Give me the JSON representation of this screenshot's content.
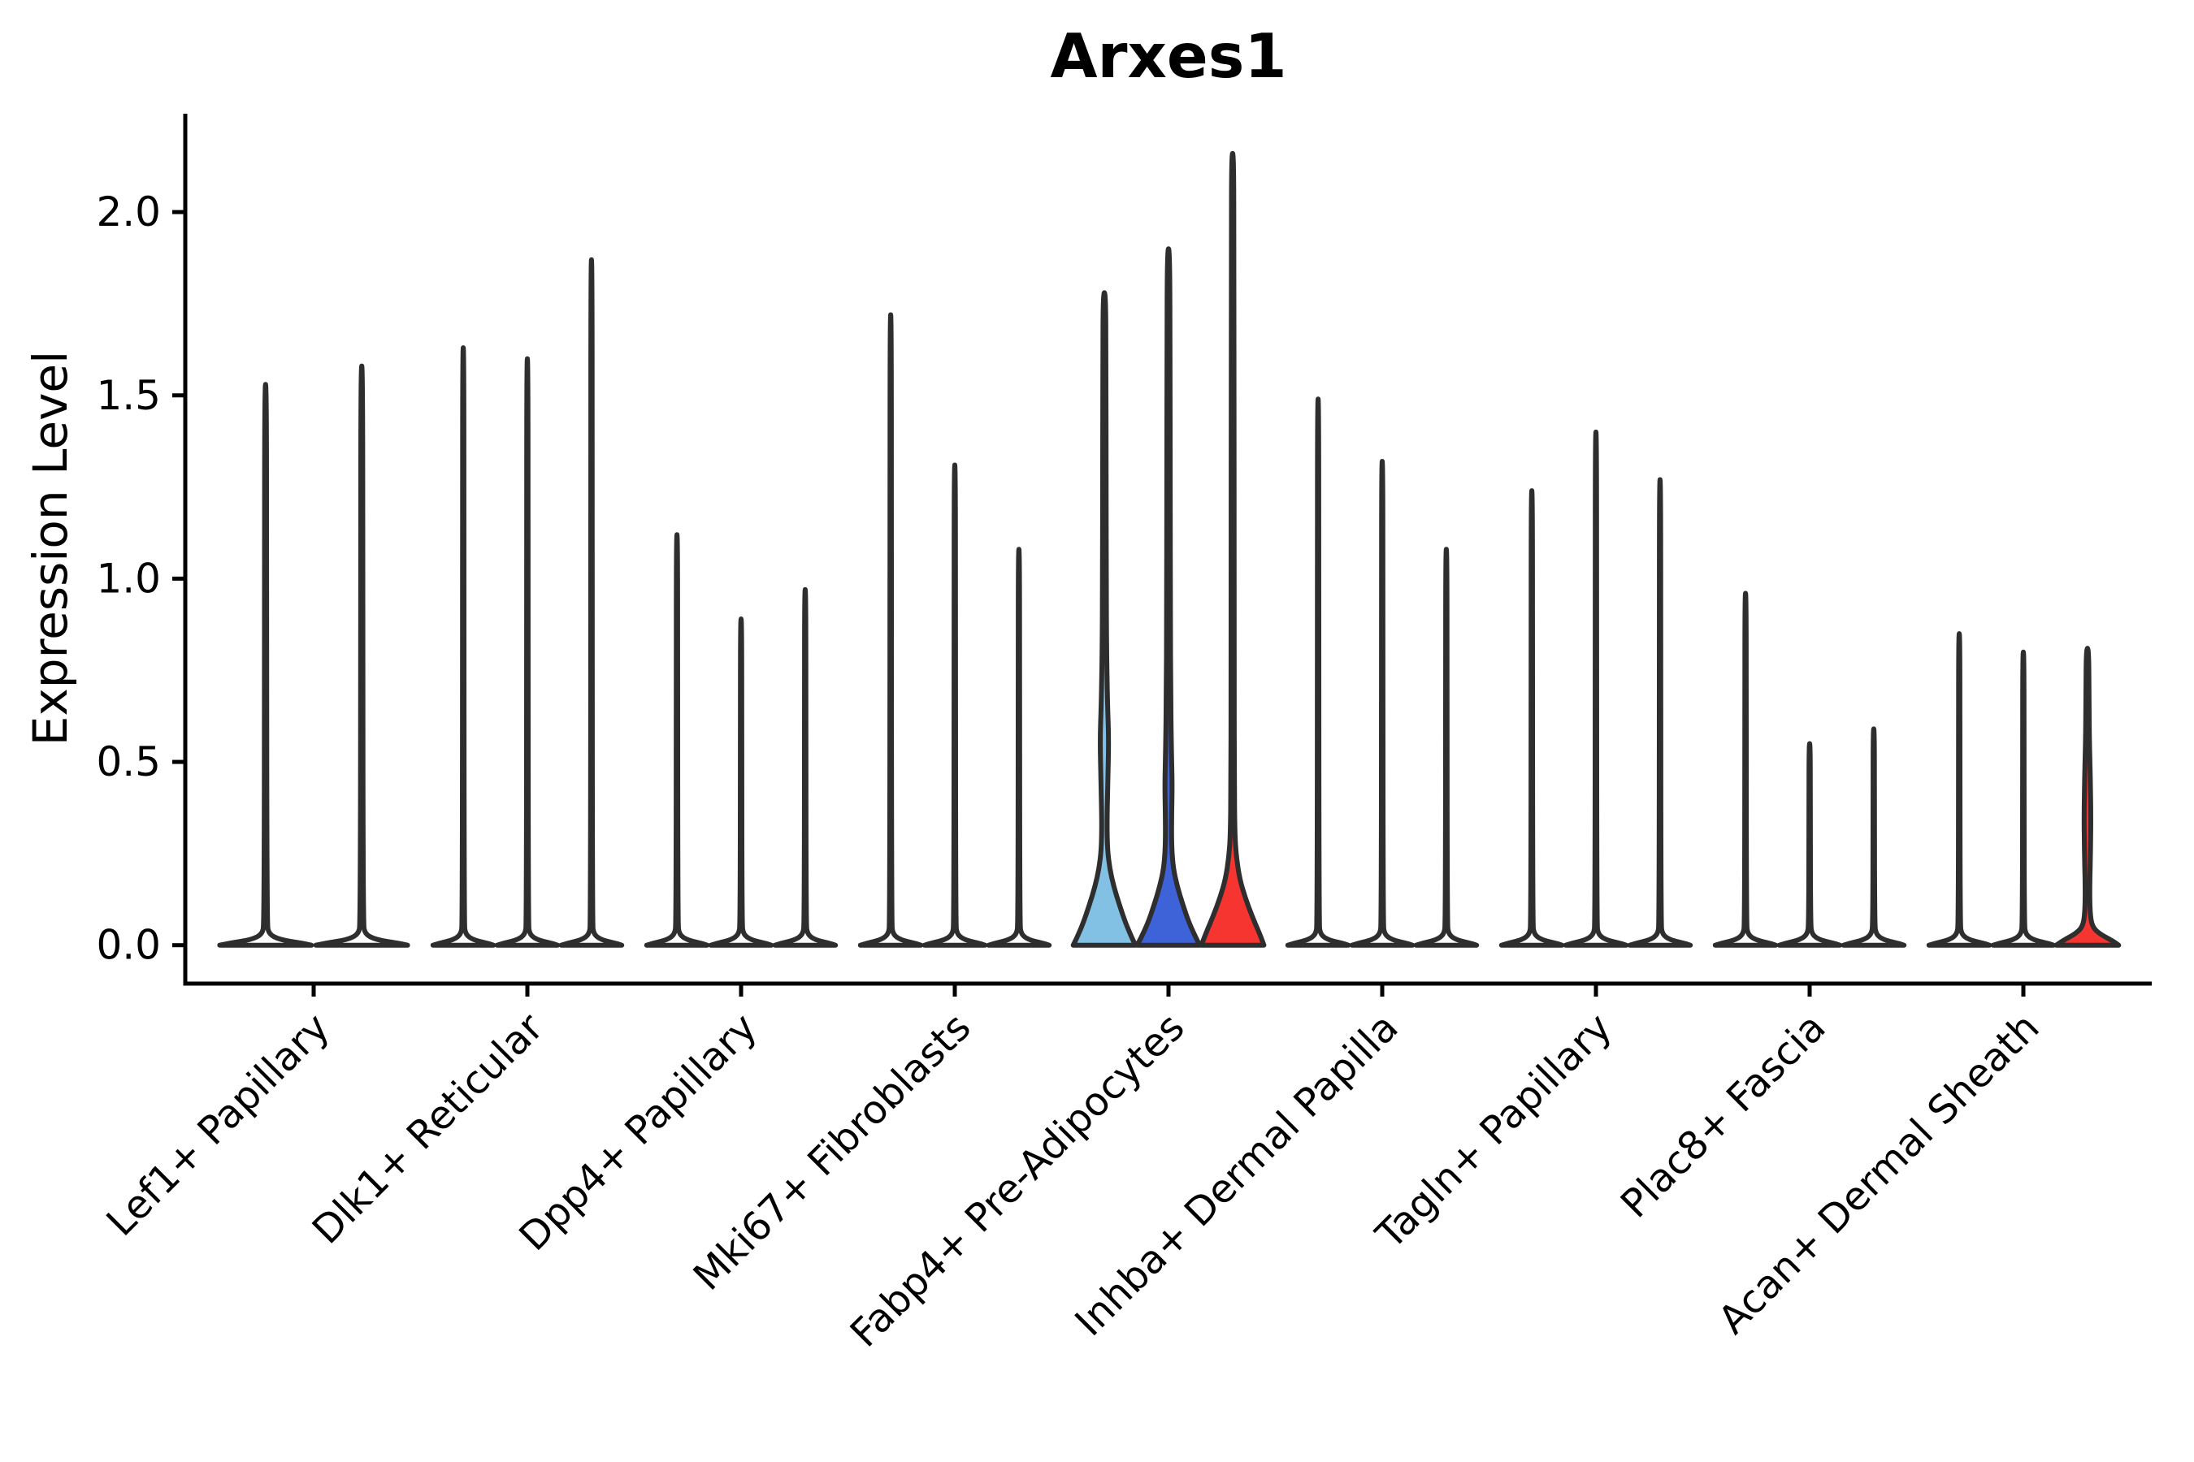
{
  "chart_data": {
    "type": "violin",
    "title": "Arxes1",
    "xlabel": "",
    "ylabel": "Expression Level",
    "yticks": [
      0.0,
      0.5,
      1.0,
      1.5,
      2.0
    ],
    "ylim": [
      -0.103,
      2.268
    ],
    "grid": false,
    "legend": "none",
    "colors": {
      "light_blue": "#82C0E4",
      "royal_blue": "#3E63D8",
      "red": "#F63430",
      "outline": "#2E2E2E",
      "axis": "#000000",
      "plain_fill": "#FFFFFF"
    },
    "default_profile": [
      [
        0,
        0.97
      ],
      [
        0.006,
        0.75
      ],
      [
        0.015,
        0.3
      ],
      [
        0.03,
        0.07
      ],
      [
        0.06,
        0.03
      ]
    ],
    "groups": [
      {
        "label": "Lef1+ Papillary",
        "violins": [
          {
            "max": 1.53,
            "fill": null
          },
          {
            "max": 1.58,
            "fill": null
          }
        ]
      },
      {
        "label": "Dlk1+ Reticular",
        "violins": [
          {
            "max": 1.63,
            "fill": null
          },
          {
            "max": 1.6,
            "fill": null
          },
          {
            "max": 1.87,
            "fill": null
          }
        ]
      },
      {
        "label": "Dpp4+ Papillary",
        "violins": [
          {
            "max": 1.12,
            "fill": null
          },
          {
            "max": 0.89,
            "fill": null
          },
          {
            "max": 0.97,
            "fill": null
          }
        ]
      },
      {
        "label": "Mki67+ Fibroblasts",
        "violins": [
          {
            "max": 1.72,
            "fill": null
          },
          {
            "max": 1.31,
            "fill": null
          },
          {
            "max": 1.08,
            "fill": null
          }
        ]
      },
      {
        "label": "Fabp4+ Pre-Adipocytes",
        "violins": [
          {
            "max": 1.78,
            "fill": "light_blue",
            "profile": [
              [
                0,
                1
              ],
              [
                0.02,
                0.88
              ],
              [
                0.06,
                0.68
              ],
              [
                0.11,
                0.48
              ],
              [
                0.16,
                0.3
              ],
              [
                0.21,
                0.17
              ],
              [
                0.26,
                0.1
              ],
              [
                0.33,
                0.08
              ],
              [
                0.45,
                0.11
              ],
              [
                0.56,
                0.14
              ],
              [
                0.66,
                0.1
              ],
              [
                0.8,
                0.07
              ],
              [
                1.0,
                0.06
              ],
              [
                1.3,
                0.055
              ],
              [
                1.6,
                0.05
              ],
              [
                1.78,
                0.04
              ]
            ]
          },
          {
            "max": 1.9,
            "fill": "royal_blue",
            "profile": [
              [
                0,
                1
              ],
              [
                0.02,
                0.88
              ],
              [
                0.06,
                0.66
              ],
              [
                0.11,
                0.46
              ],
              [
                0.16,
                0.28
              ],
              [
                0.21,
                0.15
              ],
              [
                0.27,
                0.1
              ],
              [
                0.35,
                0.1
              ],
              [
                0.44,
                0.12
              ],
              [
                0.54,
                0.09
              ],
              [
                0.68,
                0.07
              ],
              [
                0.9,
                0.06
              ],
              [
                1.25,
                0.055
              ],
              [
                1.6,
                0.05
              ],
              [
                1.9,
                0.04
              ]
            ]
          },
          {
            "max": 2.16,
            "fill": "red",
            "profile": [
              [
                0,
                1
              ],
              [
                0.03,
                0.87
              ],
              [
                0.08,
                0.62
              ],
              [
                0.13,
                0.4
              ],
              [
                0.18,
                0.23
              ],
              [
                0.24,
                0.12
              ],
              [
                0.3,
                0.07
              ],
              [
                0.45,
                0.055
              ],
              [
                0.7,
                0.05
              ],
              [
                1.1,
                0.05
              ],
              [
                1.5,
                0.045
              ],
              [
                1.9,
                0.04
              ],
              [
                2.16,
                0.035
              ]
            ]
          }
        ]
      },
      {
        "label": "Inhba+ Dermal Papilla",
        "violins": [
          {
            "max": 1.49,
            "fill": null
          },
          {
            "max": 1.32,
            "fill": null
          },
          {
            "max": 1.08,
            "fill": null
          }
        ]
      },
      {
        "label": "Tagln+ Papillary",
        "violins": [
          {
            "max": 1.24,
            "fill": null
          },
          {
            "max": 1.4,
            "fill": null
          },
          {
            "max": 1.27,
            "fill": null
          }
        ]
      },
      {
        "label": "Plac8+ Fascia",
        "violins": [
          {
            "max": 0.96,
            "fill": null
          },
          {
            "max": 0.55,
            "fill": null
          },
          {
            "max": 0.59,
            "fill": null
          }
        ]
      },
      {
        "label": "Acan+ Dermal Sheath",
        "violins": [
          {
            "max": 0.85,
            "fill": null
          },
          {
            "max": 0.8,
            "fill": null
          },
          {
            "max": 0.81,
            "fill": "red",
            "profile": [
              [
                0,
                1
              ],
              [
                0.012,
                0.8
              ],
              [
                0.03,
                0.4
              ],
              [
                0.05,
                0.15
              ],
              [
                0.09,
                0.08
              ],
              [
                0.16,
                0.07
              ],
              [
                0.26,
                0.1
              ],
              [
                0.36,
                0.11
              ],
              [
                0.46,
                0.09
              ],
              [
                0.56,
                0.06
              ],
              [
                0.68,
                0.05
              ],
              [
                0.81,
                0.04
              ]
            ]
          }
        ]
      }
    ]
  }
}
